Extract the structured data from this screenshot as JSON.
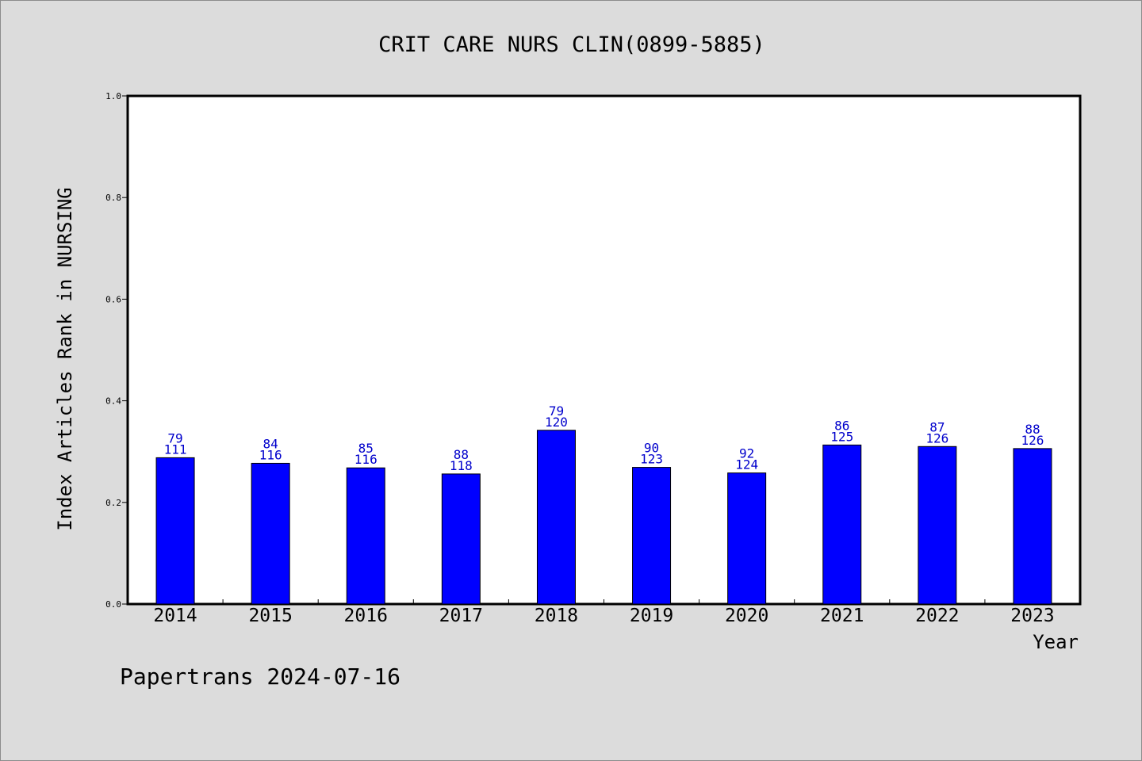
{
  "chart_data": {
    "type": "bar",
    "title": "CRIT CARE NURS CLIN(0899-5885)",
    "xlabel": "Year",
    "ylabel": "Index Articles Rank in NURSING",
    "ylim": [
      0,
      1.0
    ],
    "yticks": [
      "0.0",
      "0.2",
      "0.4",
      "0.6",
      "0.8",
      "1.0"
    ],
    "categories": [
      "2014",
      "2015",
      "2016",
      "2017",
      "2018",
      "2019",
      "2020",
      "2021",
      "2022",
      "2023"
    ],
    "values": [
      0.288,
      0.277,
      0.268,
      0.256,
      0.342,
      0.269,
      0.258,
      0.313,
      0.31,
      0.306
    ],
    "ranks": [
      "79",
      "84",
      "85",
      "88",
      "79",
      "90",
      "92",
      "86",
      "87",
      "88"
    ],
    "totals": [
      "111",
      "116",
      "116",
      "118",
      "120",
      "123",
      "124",
      "125",
      "126",
      "126"
    ],
    "bar_color": "#0000ff",
    "label_color": "#0000cc",
    "grid": false,
    "legend": "none"
  },
  "footer": "Papertrans 2024-07-16"
}
